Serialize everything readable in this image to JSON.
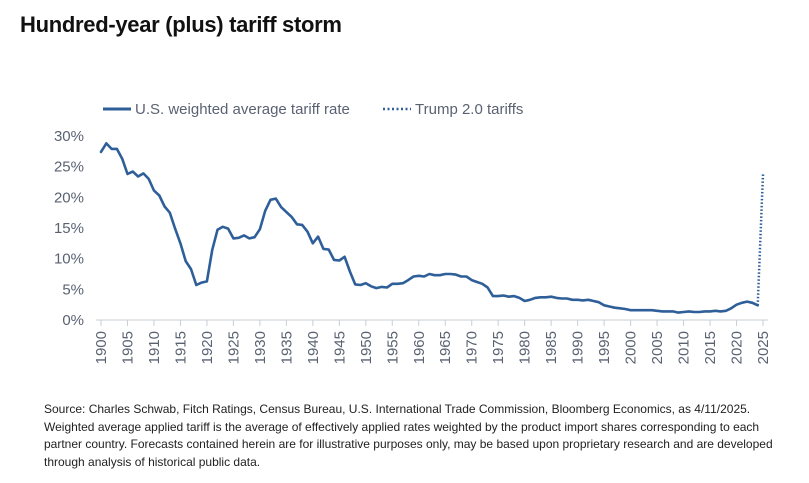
{
  "page": {
    "title": "Hundred-year (plus) tariff storm",
    "source_note": "Source: Charles Schwab, Fitch Ratings, Census Bureau, U.S. International Trade Commission, Bloomberg Economics, as 4/11/2025. Weighted average applied tariff is the average of effectively applied rates weighted by the product import shares corresponding to each partner country. Forecasts contained herein are for illustrative purposes only, may be based upon proprietary research and are developed through analysis of historical public data."
  },
  "colors": {
    "line": "#2f5f98",
    "text": "#5a6272",
    "axis": "#c9cfd6"
  },
  "chart_data": {
    "type": "line",
    "title": "Hundred-year (plus) tariff storm",
    "xlabel": "",
    "ylabel": "",
    "xlim": [
      1900,
      2025
    ],
    "ylim": [
      0,
      30
    ],
    "grid": false,
    "legend_placement": "top-left",
    "x_ticks": [
      "1900",
      "1905",
      "1910",
      "1915",
      "1920",
      "1925",
      "1930",
      "1935",
      "1940",
      "1945",
      "1950",
      "1955",
      "1960",
      "1965",
      "1970",
      "1975",
      "1980",
      "1985",
      "1990",
      "1995",
      "2000",
      "2005",
      "2010",
      "2015",
      "2020",
      "2025"
    ],
    "y_ticks": [
      "0%",
      "5%",
      "10%",
      "15%",
      "20%",
      "25%",
      "30%"
    ],
    "series": [
      {
        "name": "U.S. weighted average tariff rate",
        "style": "solid",
        "x": [
          1900,
          1901,
          1902,
          1903,
          1904,
          1905,
          1906,
          1907,
          1908,
          1909,
          1910,
          1911,
          1912,
          1913,
          1914,
          1915,
          1916,
          1917,
          1918,
          1919,
          1920,
          1921,
          1922,
          1923,
          1924,
          1925,
          1926,
          1927,
          1928,
          1929,
          1930,
          1931,
          1932,
          1933,
          1934,
          1935,
          1936,
          1937,
          1938,
          1939,
          1940,
          1941,
          1942,
          1943,
          1944,
          1945,
          1946,
          1947,
          1948,
          1949,
          1950,
          1951,
          1952,
          1953,
          1954,
          1955,
          1956,
          1957,
          1958,
          1959,
          1960,
          1961,
          1962,
          1963,
          1964,
          1965,
          1966,
          1967,
          1968,
          1969,
          1970,
          1971,
          1972,
          1973,
          1974,
          1975,
          1976,
          1977,
          1978,
          1979,
          1980,
          1981,
          1982,
          1983,
          1984,
          1985,
          1986,
          1987,
          1988,
          1989,
          1990,
          1991,
          1992,
          1993,
          1994,
          1995,
          1996,
          1997,
          1998,
          1999,
          2000,
          2001,
          2002,
          2003,
          2004,
          2005,
          2006,
          2007,
          2008,
          2009,
          2010,
          2011,
          2012,
          2013,
          2014,
          2015,
          2016,
          2017,
          2018,
          2019,
          2020,
          2021,
          2022,
          2023,
          2024
        ],
        "values": [
          27.4,
          28.8,
          27.9,
          27.9,
          26.3,
          23.8,
          24.2,
          23.4,
          23.9,
          23.0,
          21.1,
          20.3,
          18.5,
          17.5,
          14.9,
          12.5,
          9.6,
          8.3,
          5.7,
          6.1,
          6.3,
          11.4,
          14.7,
          15.2,
          14.9,
          13.3,
          13.4,
          13.8,
          13.3,
          13.5,
          14.8,
          17.8,
          19.6,
          19.8,
          18.4,
          17.6,
          16.8,
          15.6,
          15.5,
          14.4,
          12.5,
          13.6,
          11.6,
          11.5,
          9.8,
          9.7,
          10.3,
          7.9,
          5.8,
          5.7,
          6.0,
          5.5,
          5.2,
          5.4,
          5.3,
          5.9,
          5.9,
          6.0,
          6.5,
          7.1,
          7.2,
          7.1,
          7.5,
          7.3,
          7.3,
          7.5,
          7.5,
          7.4,
          7.1,
          7.1,
          6.5,
          6.2,
          5.9,
          5.3,
          3.9,
          3.9,
          4.0,
          3.8,
          3.9,
          3.6,
          3.1,
          3.3,
          3.6,
          3.7,
          3.7,
          3.8,
          3.6,
          3.5,
          3.5,
          3.3,
          3.3,
          3.2,
          3.3,
          3.1,
          2.9,
          2.4,
          2.2,
          2.0,
          1.9,
          1.8,
          1.6,
          1.6,
          1.6,
          1.6,
          1.6,
          1.5,
          1.4,
          1.4,
          1.4,
          1.2,
          1.3,
          1.4,
          1.3,
          1.3,
          1.4,
          1.4,
          1.5,
          1.4,
          1.5,
          1.9,
          2.5,
          2.8,
          3.0,
          2.8,
          2.4
        ]
      },
      {
        "name": "Trump 2.0 tariffs",
        "style": "dotted",
        "x": [
          2024,
          2025
        ],
        "values": [
          2.4,
          23.8
        ]
      }
    ]
  }
}
